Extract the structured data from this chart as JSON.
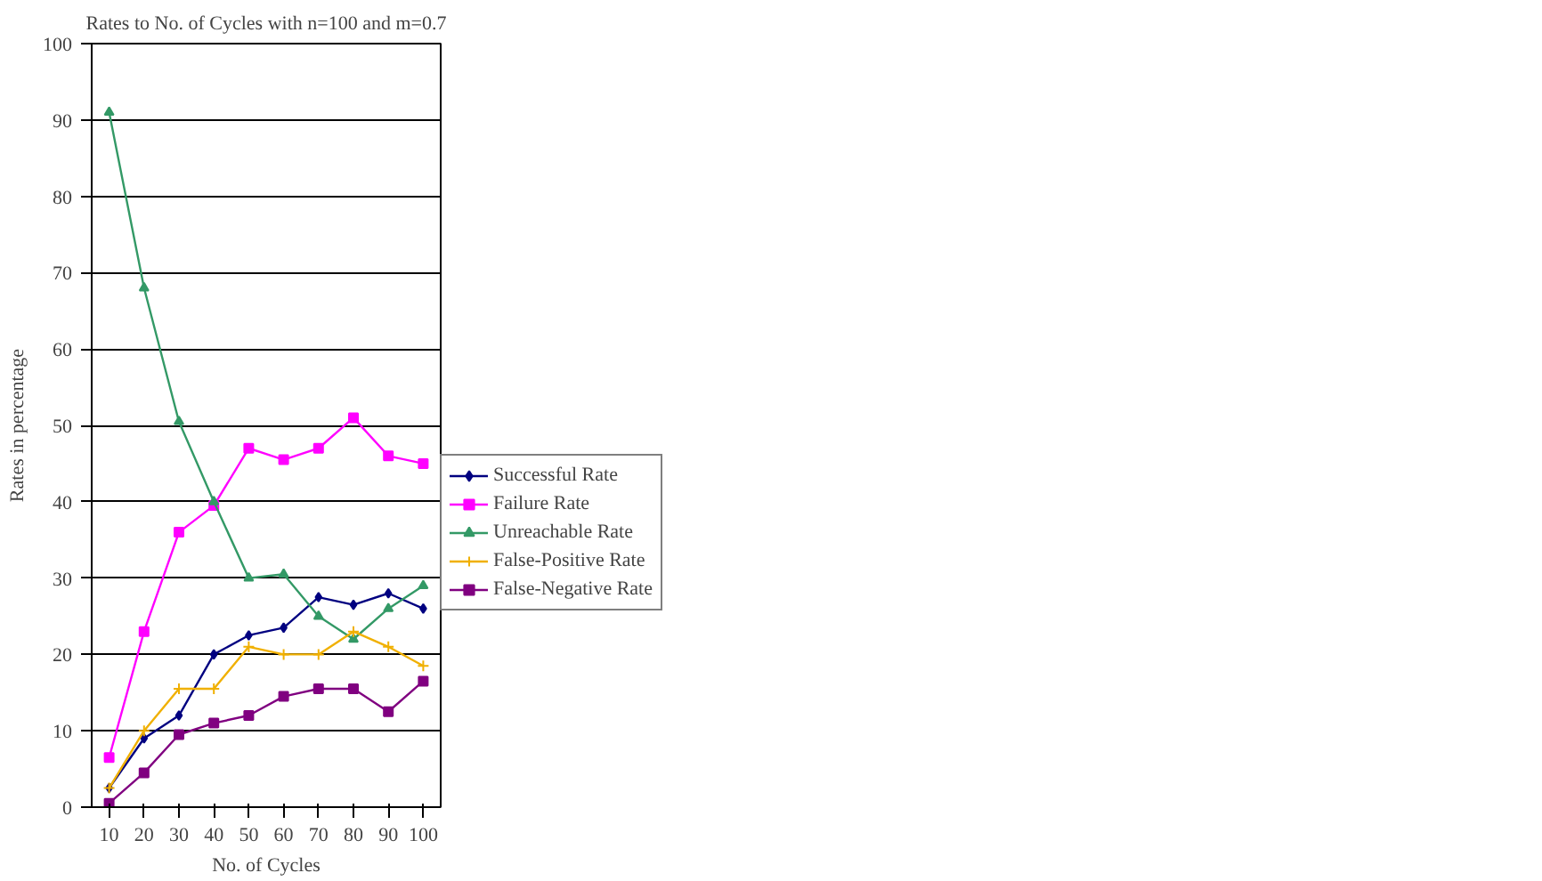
{
  "chart_data": {
    "type": "line",
    "title": "Rates to No. of Cycles with n=100 and m=0.7",
    "xlabel": "No. of Cycles",
    "ylabel": "Rates in percentage",
    "categories": [
      "10",
      "20",
      "30",
      "40",
      "50",
      "60",
      "70",
      "80",
      "90",
      "100"
    ],
    "series": [
      {
        "name": "Successful Rate",
        "color": "#000080",
        "marker": "diamond",
        "values": [
          2.5,
          9,
          12,
          20,
          22.5,
          23.5,
          27.5,
          26.5,
          28,
          26
        ]
      },
      {
        "name": "Failure Rate",
        "color": "#ff00ff",
        "marker": "square",
        "values": [
          6.5,
          23,
          36,
          39.5,
          47,
          45.5,
          47,
          51,
          46,
          45
        ]
      },
      {
        "name": "Unreachable Rate",
        "color": "#339966",
        "marker": "triangle",
        "values": [
          91,
          68,
          50.5,
          40,
          30,
          30.5,
          25,
          22,
          26,
          29
        ]
      },
      {
        "name": "False-Positive Rate",
        "color": "#f0b000",
        "marker": "cross",
        "values": [
          2.5,
          10,
          15.5,
          15.5,
          21,
          20,
          20,
          23,
          21,
          18.5
        ]
      },
      {
        "name": "False-Negative Rate",
        "color": "#800080",
        "marker": "square",
        "values": [
          0.5,
          4.5,
          9.5,
          11,
          12,
          14.5,
          15.5,
          15.5,
          12.5,
          16.5
        ]
      }
    ],
    "ylim": [
      0,
      100
    ],
    "yticks": [
      0,
      10,
      20,
      30,
      40,
      50,
      60,
      70,
      80,
      90,
      100
    ],
    "grid": "y",
    "legend": "right",
    "line_style": "solid"
  }
}
